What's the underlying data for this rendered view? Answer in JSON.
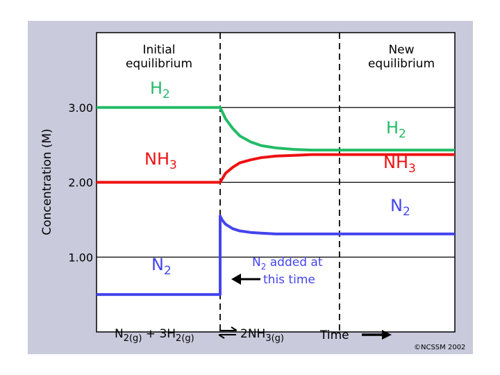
{
  "chart_data": {
    "type": "line",
    "title": "",
    "xlabel": "Time",
    "ylabel": "Concentration (M)",
    "ylim": [
      0,
      4.0
    ],
    "yticks": [
      "3.00",
      "2.00",
      "1.00"
    ],
    "ytick_values": [
      3.0,
      2.0,
      1.0
    ],
    "xlim": [
      0,
      100
    ],
    "grid": true,
    "regions": [
      {
        "label_line1": "Initial",
        "label_line2": "equilibrium"
      },
      {
        "label_line1": "New",
        "label_line2": "equilibrium"
      }
    ],
    "divider_x": [
      34.5,
      67.8
    ],
    "series": [
      {
        "name_base": "H",
        "name_sub": "2",
        "color": "#22bb66",
        "x": [
          0,
          34.5,
          36,
          38,
          40,
          43,
          46,
          50,
          55,
          60,
          67,
          80,
          100
        ],
        "y": [
          3.0,
          3.0,
          2.85,
          2.72,
          2.62,
          2.54,
          2.49,
          2.46,
          2.44,
          2.43,
          2.43,
          2.43,
          2.43
        ]
      },
      {
        "name_base": "NH",
        "name_sub": "3",
        "color": "#ee1111",
        "x": [
          0,
          34.5,
          36,
          38,
          40,
          43,
          46,
          50,
          55,
          60,
          67,
          80,
          100
        ],
        "y": [
          2.0,
          2.0,
          2.12,
          2.2,
          2.26,
          2.3,
          2.33,
          2.35,
          2.36,
          2.37,
          2.37,
          2.37,
          2.37
        ]
      },
      {
        "name_base": "N",
        "name_sub": "2",
        "color": "#4444ee",
        "x": [
          0,
          34.5,
          34.5,
          35,
          36,
          38,
          40,
          43,
          46,
          50,
          55,
          60,
          67,
          80,
          100
        ],
        "y": [
          0.5,
          0.5,
          1.55,
          1.5,
          1.44,
          1.38,
          1.35,
          1.33,
          1.32,
          1.31,
          1.31,
          1.31,
          1.31,
          1.31,
          1.31
        ]
      }
    ],
    "annotation": {
      "base": "N",
      "sub": "2",
      "rest": " added at",
      "line2": "this time"
    },
    "equation": {
      "t1": "N",
      "s1": "2(g)",
      "t2": " + 3H",
      "s2": "2(g)",
      "t3": "2NH",
      "s3": "3(g)"
    },
    "time_label": "Time",
    "copyright": "©NCSSM 2002"
  }
}
